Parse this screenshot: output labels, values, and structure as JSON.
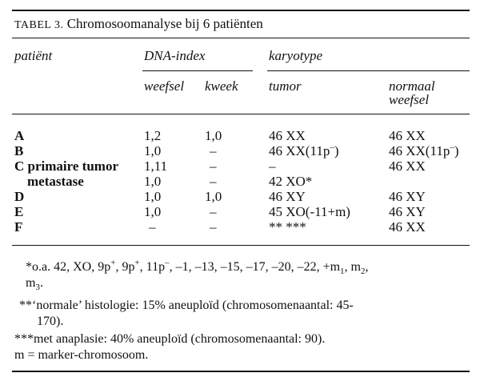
{
  "table": {
    "label": "TABEL 3.",
    "title": "Chromosoomanalyse bij 6 patiënten",
    "headers": {
      "patient": "patiënt",
      "dna_index": "DNA-index",
      "karyotype": "karyotype",
      "weefsel": "weefsel",
      "kweek": "kweek",
      "tumor": "tumor",
      "normaal_1": "normaal",
      "normaal_2": "weefsel"
    },
    "rows": [
      {
        "patient": "A",
        "weefsel": "1,2",
        "kweek": "1,0",
        "tumor": "46 XX",
        "normaal": "46 XX"
      },
      {
        "patient": "B",
        "weefsel": "1,0",
        "kweek": "–",
        "tumor": "46 XX(11p",
        "tumor_sup": "–",
        "tumor_end": ")",
        "normaal": "46 XX(11p",
        "normaal_sup": "–",
        "normaal_end": ")"
      },
      {
        "patient": "C primaire tumor",
        "weefsel": "1,11",
        "kweek": "–",
        "tumor": "–",
        "normaal": "46 XX"
      },
      {
        "patient": "metastase",
        "weefsel": "1,0",
        "kweek": "–",
        "tumor": "42 XO*",
        "normaal": ""
      },
      {
        "patient": "D",
        "weefsel": "1,0",
        "kweek": "1,0",
        "tumor": "46 XY",
        "normaal": "46 XY"
      },
      {
        "patient": "E",
        "weefsel": "1,0",
        "kweek": "–",
        "tumor": "45 XO(-11+m)",
        "normaal": "46 XY"
      },
      {
        "patient": "F",
        "weefsel": "–",
        "kweek": "–",
        "tumor": "** ***",
        "normaal": "46 XX"
      }
    ],
    "footnotes": {
      "f1_a": "*o.a. 42, XO, 9p",
      "f1_b": ", 9p",
      "f1_c": ", 11p",
      "f1_d": ", –1, –13, –15, –17, –20, –22, +m",
      "f1_e": ", m",
      "f1_f": ",",
      "f1_g": "m",
      "f1_h": ".",
      "sup_plus": "+",
      "sup_minus": "–",
      "sub_1": "1",
      "sub_2": "2",
      "sub_3": "3",
      "f2_a": "**‘normale’ histologie: 15% aneuploïd (chromosomenaantal: 45-",
      "f2_b": "170).",
      "f3": "***met anaplasie: 40% aneuploïd (chromosomenaantal: 90).",
      "f4": "m = marker-chromosoom."
    }
  }
}
